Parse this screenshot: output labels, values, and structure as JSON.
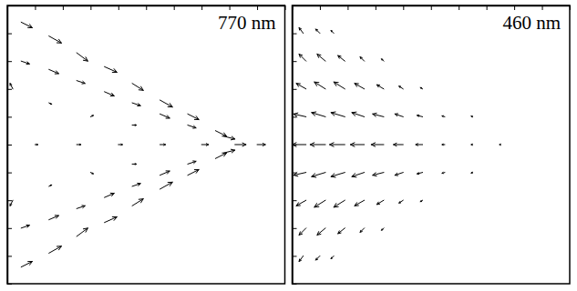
{
  "chart_data": [
    {
      "type": "quiver",
      "title": "770 nm",
      "xlim": [
        0,
        100
      ],
      "ylim": [
        0,
        100
      ],
      "xticks": [
        0,
        10,
        20,
        30,
        40,
        50,
        60,
        70,
        80,
        90,
        100
      ],
      "yticks": [
        0,
        10,
        20,
        30,
        40,
        50,
        60,
        70,
        80,
        90,
        100
      ],
      "tick_labels": false,
      "color": "#000000",
      "x": [
        5,
        15,
        25,
        35,
        45,
        55,
        65,
        75,
        5,
        15,
        25,
        35,
        45,
        55,
        65,
        78,
        5,
        15,
        25,
        35,
        45,
        55,
        65,
        75,
        5,
        15,
        25,
        35,
        45,
        55,
        65,
        78,
        10,
        25,
        40,
        55,
        70,
        82,
        90,
        15,
        30,
        45,
        15,
        30,
        45,
        2,
        2
      ],
      "y": [
        94,
        89,
        83,
        78,
        72,
        66,
        61,
        55,
        80,
        77,
        73,
        69,
        65,
        61,
        57,
        53,
        6,
        11,
        17,
        22,
        28,
        34,
        39,
        45,
        20,
        23,
        27,
        31,
        35,
        39,
        43,
        47,
        50,
        50,
        50,
        50,
        50,
        50,
        50,
        65,
        60,
        57,
        35,
        40,
        43,
        70,
        30
      ],
      "u": [
        4,
        4.5,
        4,
        4.5,
        4,
        4.5,
        4,
        4,
        3,
        3.5,
        3,
        3.5,
        3,
        3.5,
        3,
        4,
        4,
        4.5,
        4,
        4.5,
        4,
        4.5,
        4,
        4,
        3,
        3.5,
        3,
        3.5,
        3,
        3.5,
        3,
        4,
        1,
        1.5,
        1.5,
        2,
        2.5,
        4,
        3,
        1,
        1,
        1.5,
        1,
        1,
        1.5,
        -1,
        -1
      ],
      "v": [
        -2,
        -2.5,
        -3,
        -2,
        -2.5,
        -2.5,
        -2,
        -2,
        -1,
        -1.5,
        -1,
        -1.5,
        -1,
        -1.5,
        -1,
        -1,
        2,
        2.5,
        3,
        2,
        2.5,
        2.5,
        2,
        2,
        1,
        1.5,
        1,
        1.5,
        1,
        1.5,
        1,
        1,
        0,
        0,
        0,
        0,
        0,
        0,
        0,
        -0.5,
        0.5,
        0,
        0.5,
        -0.5,
        0,
        2,
        -2
      ]
    },
    {
      "type": "quiver",
      "title": "460 nm",
      "xlim": [
        0,
        100
      ],
      "ylim": [
        0,
        100
      ],
      "xticks": [
        0,
        10,
        20,
        30,
        40,
        50,
        60,
        70,
        80,
        90,
        100
      ],
      "yticks": [
        0,
        10,
        20,
        30,
        40,
        50,
        60,
        70,
        80,
        90,
        100
      ],
      "tick_labels": false,
      "color": "#000000",
      "x": [
        5,
        12,
        19,
        26,
        33,
        40,
        47,
        55,
        65,
        75,
        5,
        12,
        19,
        26,
        33,
        40,
        47,
        55,
        65,
        5,
        12,
        19,
        26,
        33,
        40,
        47,
        55,
        65,
        5,
        12,
        19,
        26,
        33,
        40,
        47,
        5,
        12,
        19,
        26,
        33,
        40,
        47,
        5,
        12,
        19,
        26,
        33,
        5,
        12,
        19,
        26,
        33,
        4,
        10,
        15,
        4,
        10,
        15
      ],
      "y": [
        50,
        50,
        50,
        50,
        50,
        50,
        50,
        50,
        50,
        50,
        60,
        60,
        60,
        60,
        60,
        60,
        60,
        60,
        60,
        40,
        40,
        40,
        40,
        40,
        40,
        40,
        40,
        40,
        70,
        70,
        70,
        70,
        70,
        70,
        70,
        30,
        30,
        30,
        30,
        30,
        30,
        30,
        80,
        80,
        80,
        80,
        80,
        20,
        20,
        20,
        20,
        20,
        90,
        90,
        90,
        10,
        10,
        10
      ],
      "u": [
        -5,
        -5.5,
        -5.5,
        -5,
        -4.5,
        -3.5,
        -2.5,
        -1,
        -0.5,
        -0.3,
        -4.5,
        -5,
        -5,
        -4.5,
        -4,
        -3,
        -2,
        -1,
        -0.5,
        -4.5,
        -5,
        -5,
        -4.5,
        -4,
        -3,
        -2,
        -1,
        -0.5,
        -3.5,
        -4,
        -4,
        -3.5,
        -2.5,
        -1.5,
        -0.8,
        -3.5,
        -4,
        -4,
        -3.5,
        -2.5,
        -1.5,
        -0.8,
        -2.5,
        -3,
        -2.5,
        -1.5,
        -0.8,
        -2.5,
        -3,
        -2.5,
        -1.5,
        -0.8,
        -1.5,
        -1.5,
        -1,
        -1.5,
        -1.5,
        -1
      ],
      "v": [
        0,
        0,
        0,
        0,
        0,
        0,
        0,
        0,
        0,
        0,
        1,
        1.5,
        1.5,
        1.5,
        1,
        1,
        0.5,
        0.3,
        0.2,
        -1,
        -1.5,
        -1.5,
        -1.5,
        -1,
        -1,
        -0.5,
        -0.3,
        -0.2,
        2,
        2.5,
        2.5,
        2,
        1.5,
        1,
        0.5,
        -2,
        -2.5,
        -2.5,
        -2,
        -1.5,
        -1,
        -0.5,
        2.5,
        2.5,
        2,
        1.5,
        0.8,
        -2.5,
        -2.5,
        -2,
        -1.5,
        -0.8,
        2,
        1.5,
        1,
        -2,
        -1.5,
        -1
      ]
    }
  ]
}
